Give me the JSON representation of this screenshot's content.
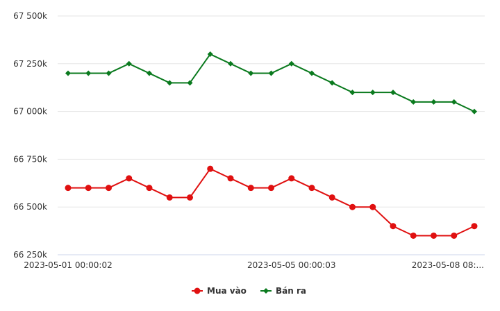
{
  "chart_data": {
    "type": "line",
    "y_ticks": [
      "67 500k",
      "67 250k",
      "67 000k",
      "66 750k",
      "66 500k",
      "66 250k"
    ],
    "y_tick_values": [
      67500,
      67250,
      67000,
      66750,
      66500,
      66250
    ],
    "ylim": [
      66250,
      67500
    ],
    "x_tick_labels": [
      "2023-05-01 00:00:02",
      "2023-05-05 00:00:03",
      "2023-05-08 08:..."
    ],
    "x_tick_indices": [
      0,
      11,
      20
    ],
    "grid": true,
    "legend_position": "bottom",
    "series": [
      {
        "name": "Mua vào",
        "color": "#e01010",
        "marker": "circle",
        "values": [
          66600,
          66600,
          66600,
          66650,
          66600,
          66550,
          66550,
          66700,
          66650,
          66600,
          66600,
          66650,
          66600,
          66550,
          66500,
          66500,
          66400,
          66350,
          66350,
          66350,
          66400
        ]
      },
      {
        "name": "Bán ra",
        "color": "#0a7a1e",
        "marker": "diamond",
        "values": [
          67200,
          67200,
          67200,
          67250,
          67200,
          67150,
          67150,
          67300,
          67250,
          67200,
          67200,
          67250,
          67200,
          67150,
          67100,
          67100,
          67100,
          67050,
          67050,
          67050,
          67000
        ]
      }
    ]
  }
}
